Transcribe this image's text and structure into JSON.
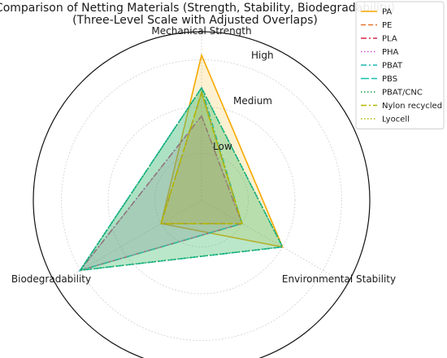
{
  "chart_data": {
    "type": "radar",
    "title_lines": [
      "Comparison of Netting Materials (Strength, Stability, Biodegradability)",
      "(Three-Level Scale with Adjusted Overlaps)"
    ],
    "axes": [
      "Mechanical Strength",
      "Environmental Stability",
      "Biodegradability"
    ],
    "levels": [
      "Low",
      "Medium",
      "High"
    ],
    "range": [
      0,
      3.6
    ],
    "grid": true,
    "legend_position": "top-right",
    "series": [
      {
        "name": "PA",
        "color": "#f5a800",
        "dash": "solid",
        "fill": "#f5b400",
        "fill_opacity": 0.18,
        "values": [
          3.1,
          2.0,
          1.0
        ]
      },
      {
        "name": "PE",
        "color": "#e8762a",
        "dash": "dashed",
        "fill": "#e8762a",
        "fill_opacity": 0.1,
        "values": [
          2.3,
          1.0,
          1.0
        ]
      },
      {
        "name": "PLA",
        "color": "#d62a4c",
        "dash": "dashdot",
        "fill": "#d62a4c",
        "fill_opacity": 0.1,
        "values": [
          1.8,
          1.0,
          3.0
        ]
      },
      {
        "name": "PHA",
        "color": "#c654c8",
        "dash": "dotted",
        "fill": "#c654c8",
        "fill_opacity": 0.1,
        "values": [
          1.8,
          1.0,
          3.0
        ]
      },
      {
        "name": "PBAT",
        "color": "#1fb5b0",
        "dash": "dashdot",
        "fill": "#1fb5b0",
        "fill_opacity": 0.1,
        "values": [
          2.4,
          1.0,
          3.0
        ]
      },
      {
        "name": "PBS",
        "color": "#16c0b0",
        "dash": "longdash",
        "fill": "#16c0b0",
        "fill_opacity": 0.22,
        "values": [
          2.4,
          2.0,
          3.0
        ]
      },
      {
        "name": "PBAT/CNC",
        "color": "#1a9e4a",
        "dash": "dotted",
        "fill": "#7cc24a",
        "fill_opacity": 0.22,
        "values": [
          2.4,
          2.0,
          3.0
        ]
      },
      {
        "name": "Nylon recycled",
        "color": "#b3b800",
        "dash": "dashdot",
        "fill": "#b3b800",
        "fill_opacity": 0.08,
        "values": [
          2.3,
          1.0,
          1.0
        ]
      },
      {
        "name": "Lyocell",
        "color": "#b3b800",
        "dash": "dotted",
        "fill": "#b3b800",
        "fill_opacity": 0.06,
        "values": [
          2.3,
          1.0,
          1.0
        ]
      }
    ]
  }
}
